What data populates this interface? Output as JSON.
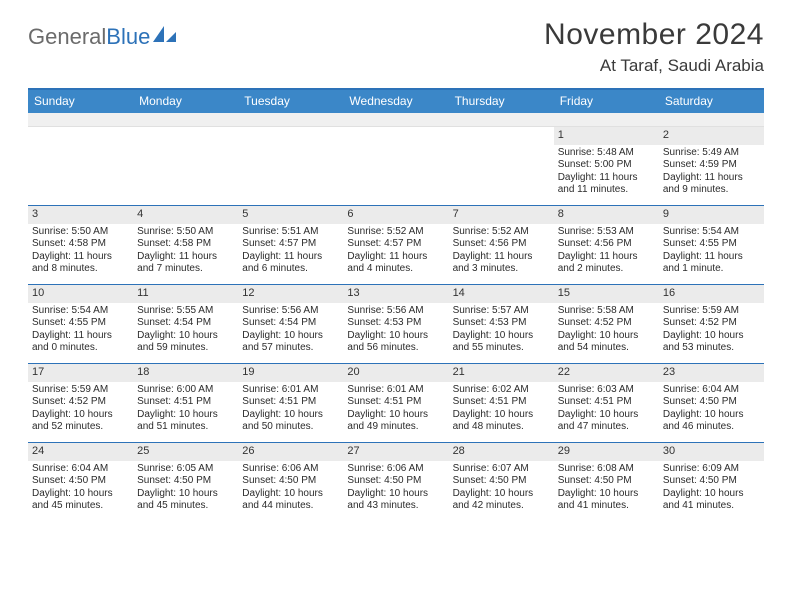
{
  "logo": {
    "part1": "General",
    "part2": "Blue"
  },
  "title": "November 2024",
  "location": "At Taraf, Saudi Arabia",
  "colors": {
    "header_bar": "#3b87c8",
    "rule": "#2d72b8",
    "daynum_bg": "#ebebeb",
    "text": "#2b2b2b",
    "logo_gray": "#6b6b6b",
    "logo_blue": "#2d72b8"
  },
  "day_labels": [
    "Sunday",
    "Monday",
    "Tuesday",
    "Wednesday",
    "Thursday",
    "Friday",
    "Saturday"
  ],
  "weeks": [
    [
      {
        "n": "",
        "sr": "",
        "ss": "",
        "d1": "",
        "d2": ""
      },
      {
        "n": "",
        "sr": "",
        "ss": "",
        "d1": "",
        "d2": ""
      },
      {
        "n": "",
        "sr": "",
        "ss": "",
        "d1": "",
        "d2": ""
      },
      {
        "n": "",
        "sr": "",
        "ss": "",
        "d1": "",
        "d2": ""
      },
      {
        "n": "",
        "sr": "",
        "ss": "",
        "d1": "",
        "d2": ""
      },
      {
        "n": "1",
        "sr": "Sunrise: 5:48 AM",
        "ss": "Sunset: 5:00 PM",
        "d1": "Daylight: 11 hours",
        "d2": "and 11 minutes."
      },
      {
        "n": "2",
        "sr": "Sunrise: 5:49 AM",
        "ss": "Sunset: 4:59 PM",
        "d1": "Daylight: 11 hours",
        "d2": "and 9 minutes."
      }
    ],
    [
      {
        "n": "3",
        "sr": "Sunrise: 5:50 AM",
        "ss": "Sunset: 4:58 PM",
        "d1": "Daylight: 11 hours",
        "d2": "and 8 minutes."
      },
      {
        "n": "4",
        "sr": "Sunrise: 5:50 AM",
        "ss": "Sunset: 4:58 PM",
        "d1": "Daylight: 11 hours",
        "d2": "and 7 minutes."
      },
      {
        "n": "5",
        "sr": "Sunrise: 5:51 AM",
        "ss": "Sunset: 4:57 PM",
        "d1": "Daylight: 11 hours",
        "d2": "and 6 minutes."
      },
      {
        "n": "6",
        "sr": "Sunrise: 5:52 AM",
        "ss": "Sunset: 4:57 PM",
        "d1": "Daylight: 11 hours",
        "d2": "and 4 minutes."
      },
      {
        "n": "7",
        "sr": "Sunrise: 5:52 AM",
        "ss": "Sunset: 4:56 PM",
        "d1": "Daylight: 11 hours",
        "d2": "and 3 minutes."
      },
      {
        "n": "8",
        "sr": "Sunrise: 5:53 AM",
        "ss": "Sunset: 4:56 PM",
        "d1": "Daylight: 11 hours",
        "d2": "and 2 minutes."
      },
      {
        "n": "9",
        "sr": "Sunrise: 5:54 AM",
        "ss": "Sunset: 4:55 PM",
        "d1": "Daylight: 11 hours",
        "d2": "and 1 minute."
      }
    ],
    [
      {
        "n": "10",
        "sr": "Sunrise: 5:54 AM",
        "ss": "Sunset: 4:55 PM",
        "d1": "Daylight: 11 hours",
        "d2": "and 0 minutes."
      },
      {
        "n": "11",
        "sr": "Sunrise: 5:55 AM",
        "ss": "Sunset: 4:54 PM",
        "d1": "Daylight: 10 hours",
        "d2": "and 59 minutes."
      },
      {
        "n": "12",
        "sr": "Sunrise: 5:56 AM",
        "ss": "Sunset: 4:54 PM",
        "d1": "Daylight: 10 hours",
        "d2": "and 57 minutes."
      },
      {
        "n": "13",
        "sr": "Sunrise: 5:56 AM",
        "ss": "Sunset: 4:53 PM",
        "d1": "Daylight: 10 hours",
        "d2": "and 56 minutes."
      },
      {
        "n": "14",
        "sr": "Sunrise: 5:57 AM",
        "ss": "Sunset: 4:53 PM",
        "d1": "Daylight: 10 hours",
        "d2": "and 55 minutes."
      },
      {
        "n": "15",
        "sr": "Sunrise: 5:58 AM",
        "ss": "Sunset: 4:52 PM",
        "d1": "Daylight: 10 hours",
        "d2": "and 54 minutes."
      },
      {
        "n": "16",
        "sr": "Sunrise: 5:59 AM",
        "ss": "Sunset: 4:52 PM",
        "d1": "Daylight: 10 hours",
        "d2": "and 53 minutes."
      }
    ],
    [
      {
        "n": "17",
        "sr": "Sunrise: 5:59 AM",
        "ss": "Sunset: 4:52 PM",
        "d1": "Daylight: 10 hours",
        "d2": "and 52 minutes."
      },
      {
        "n": "18",
        "sr": "Sunrise: 6:00 AM",
        "ss": "Sunset: 4:51 PM",
        "d1": "Daylight: 10 hours",
        "d2": "and 51 minutes."
      },
      {
        "n": "19",
        "sr": "Sunrise: 6:01 AM",
        "ss": "Sunset: 4:51 PM",
        "d1": "Daylight: 10 hours",
        "d2": "and 50 minutes."
      },
      {
        "n": "20",
        "sr": "Sunrise: 6:01 AM",
        "ss": "Sunset: 4:51 PM",
        "d1": "Daylight: 10 hours",
        "d2": "and 49 minutes."
      },
      {
        "n": "21",
        "sr": "Sunrise: 6:02 AM",
        "ss": "Sunset: 4:51 PM",
        "d1": "Daylight: 10 hours",
        "d2": "and 48 minutes."
      },
      {
        "n": "22",
        "sr": "Sunrise: 6:03 AM",
        "ss": "Sunset: 4:51 PM",
        "d1": "Daylight: 10 hours",
        "d2": "and 47 minutes."
      },
      {
        "n": "23",
        "sr": "Sunrise: 6:04 AM",
        "ss": "Sunset: 4:50 PM",
        "d1": "Daylight: 10 hours",
        "d2": "and 46 minutes."
      }
    ],
    [
      {
        "n": "24",
        "sr": "Sunrise: 6:04 AM",
        "ss": "Sunset: 4:50 PM",
        "d1": "Daylight: 10 hours",
        "d2": "and 45 minutes."
      },
      {
        "n": "25",
        "sr": "Sunrise: 6:05 AM",
        "ss": "Sunset: 4:50 PM",
        "d1": "Daylight: 10 hours",
        "d2": "and 45 minutes."
      },
      {
        "n": "26",
        "sr": "Sunrise: 6:06 AM",
        "ss": "Sunset: 4:50 PM",
        "d1": "Daylight: 10 hours",
        "d2": "and 44 minutes."
      },
      {
        "n": "27",
        "sr": "Sunrise: 6:06 AM",
        "ss": "Sunset: 4:50 PM",
        "d1": "Daylight: 10 hours",
        "d2": "and 43 minutes."
      },
      {
        "n": "28",
        "sr": "Sunrise: 6:07 AM",
        "ss": "Sunset: 4:50 PM",
        "d1": "Daylight: 10 hours",
        "d2": "and 42 minutes."
      },
      {
        "n": "29",
        "sr": "Sunrise: 6:08 AM",
        "ss": "Sunset: 4:50 PM",
        "d1": "Daylight: 10 hours",
        "d2": "and 41 minutes."
      },
      {
        "n": "30",
        "sr": "Sunrise: 6:09 AM",
        "ss": "Sunset: 4:50 PM",
        "d1": "Daylight: 10 hours",
        "d2": "and 41 minutes."
      }
    ]
  ]
}
